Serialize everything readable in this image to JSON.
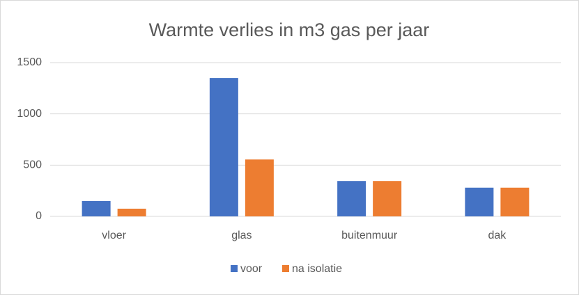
{
  "chart_data": {
    "type": "bar",
    "title": "Warmte verlies in m3 gas per jaar",
    "categories": [
      "vloer",
      "glas",
      "buitenmuur",
      "dak"
    ],
    "series": [
      {
        "name": "voor",
        "color": "#4472c4",
        "values": [
          150,
          1350,
          345,
          280
        ]
      },
      {
        "name": "na isolatie",
        "color": "#ed7d31",
        "values": [
          75,
          555,
          345,
          280
        ]
      }
    ],
    "ylim": [
      0,
      1500
    ],
    "yticks": [
      0,
      500,
      1000,
      1500
    ],
    "grid": true,
    "legend": "bottom"
  }
}
